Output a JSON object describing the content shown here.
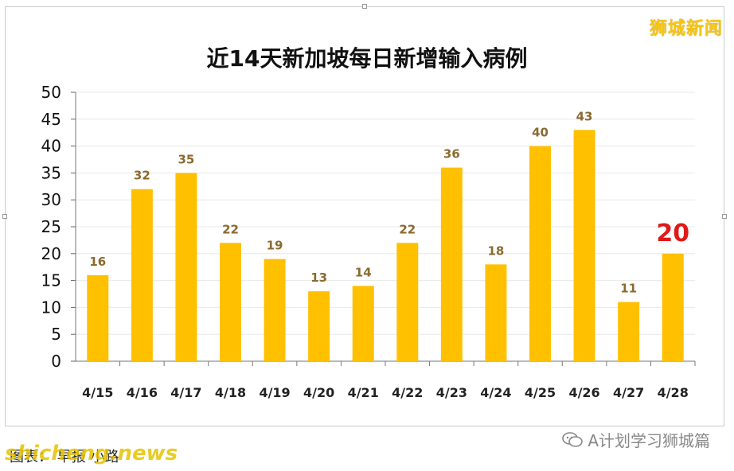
{
  "title": "近14天新加坡每日新增输入病例",
  "brand_top": "狮城新闻",
  "footer": {
    "left_text": "图表：  早报  小路",
    "watermark": "shicheng.news",
    "right_text": "A计划学习狮城篇"
  },
  "colors": {
    "bar": "#FFC000",
    "label": "#8A6A2E",
    "highlight_label": "#E0191A",
    "grid": "#e8e8e8"
  },
  "chart_data": {
    "type": "bar",
    "title": "近14天新加坡每日新增输入病例",
    "categories": [
      "4/15",
      "4/16",
      "4/17",
      "4/18",
      "4/19",
      "4/20",
      "4/21",
      "4/22",
      "4/23",
      "4/24",
      "4/25",
      "4/26",
      "4/27",
      "4/28"
    ],
    "values": [
      16,
      32,
      35,
      22,
      19,
      13,
      14,
      22,
      36,
      18,
      40,
      43,
      11,
      20
    ],
    "highlight_index": 13,
    "ylim": [
      0,
      50
    ],
    "yticks": [
      0,
      5,
      10,
      15,
      20,
      25,
      30,
      35,
      40,
      45,
      50
    ],
    "grid": true
  }
}
